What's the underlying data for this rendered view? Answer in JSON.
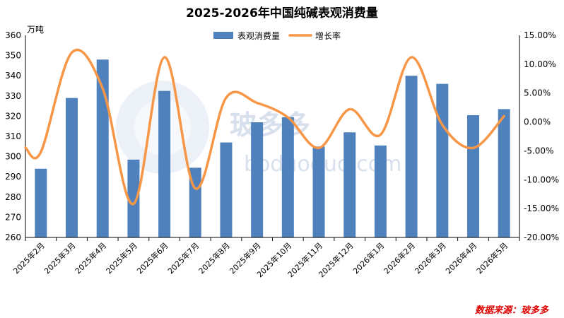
{
  "chart_data": {
    "type": "bar+line",
    "title": "2025-2026年中国纯碱表观消费量",
    "y_left_unit": "万吨",
    "y_left_range": [
      260,
      360
    ],
    "y_left_ticks": [
      "260",
      "270",
      "280",
      "290",
      "300",
      "310",
      "320",
      "330",
      "340",
      "350",
      "360"
    ],
    "y_right_range": [
      -20,
      15
    ],
    "y_right_ticks": [
      "-20.00%",
      "-15.00%",
      "-10.00%",
      "-5.00%",
      "0.00%",
      "5.00%",
      "10.00%",
      "15.00%"
    ],
    "categories": [
      "2025年2月",
      "2025年3月",
      "2025年4月",
      "2025年5月",
      "2025年6月",
      "2025年7月",
      "2025年8月",
      "2025年9月",
      "2025年10月",
      "2025年11月",
      "2025年12月",
      "2026年1月",
      "2026年2月",
      "2026年3月",
      "2026年4月",
      "2026年5月"
    ],
    "series": [
      {
        "name": "表观消费量",
        "type": "bar",
        "axis": "left",
        "values": [
          294,
          329,
          348,
          298.5,
          332.5,
          294.5,
          307,
          317,
          319.5,
          305,
          312,
          305.5,
          340,
          336,
          320.5,
          323.5
        ]
      },
      {
        "name": "增长率",
        "type": "line",
        "axis": "right",
        "values": [
          -5.2,
          12.0,
          5.8,
          -14.2,
          11.2,
          -11.5,
          4.2,
          3.3,
          0.8,
          -4.5,
          2.2,
          -2.2,
          11.2,
          -0.5,
          -4.5,
          1.0
        ]
      }
    ],
    "legend_position": "top-center",
    "grid": false,
    "colors": {
      "bar": "#4f81bd",
      "line": "#f79646"
    }
  },
  "watermark": {
    "text": "玻多多",
    "url": "boduoduo.com"
  },
  "source": "数据来源：玻多多"
}
